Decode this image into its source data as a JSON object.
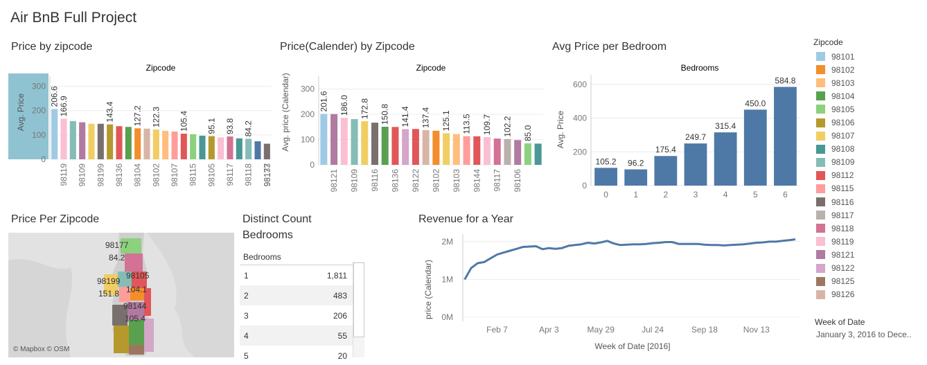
{
  "dashboard": {
    "title": "Air BnB Full Project"
  },
  "price_by_zipcode": {
    "title": "Price by zipcode",
    "header": "Zipcode",
    "y_axis_label": "Avg. Price",
    "y_ticks": [
      "300",
      "200",
      "100",
      "0"
    ],
    "zips": [
      "98119",
      "98109",
      "98199",
      "98136",
      "98104",
      "98102",
      "98107",
      "98115",
      "98105",
      "98117",
      "98118",
      "98177",
      "98133"
    ],
    "label_values": [
      "206.6",
      "166.9",
      "143.4",
      "127.2",
      "122.3",
      "105.4",
      "95.1",
      "93.8",
      "84.2"
    ]
  },
  "price_calendar": {
    "title": "Price(Calender) by Zipcode",
    "header": "Zipcode",
    "y_axis_label": "Avg. price (Calendar)",
    "y_ticks": [
      "300",
      "200",
      "100",
      "0"
    ],
    "zips": [
      "98121",
      "98109",
      "98116",
      "98136",
      "98122",
      "98102",
      "98103",
      "98144",
      "98117",
      "98106"
    ],
    "label_values": [
      "201.6",
      "186.0",
      "172.8",
      "150.8",
      "141.4",
      "137.4",
      "125.1",
      "113.5",
      "109.7",
      "102.2",
      "85.0"
    ]
  },
  "avg_price_bedroom": {
    "title": "Avg Price per Bedroom",
    "header": "Bedrooms",
    "y_axis_label": "Avg. Price",
    "y_ticks": [
      "600",
      "400",
      "200",
      "0"
    ]
  },
  "price_per_zipcode_map": {
    "title": "Price Per Zipcode",
    "labels": [
      "98177",
      "84.2",
      "98199",
      "151.8",
      "98105",
      "104.1",
      "98144",
      "105.4"
    ],
    "attribution": "© Mapbox © OSM"
  },
  "distinct_count": {
    "title_line1": "Distinct Count",
    "title_line2": "Bedrooms",
    "column_header": "Bedrooms",
    "rows": [
      {
        "bedrooms": "1",
        "count": "1,811"
      },
      {
        "bedrooms": "2",
        "count": "483"
      },
      {
        "bedrooms": "3",
        "count": "206"
      },
      {
        "bedrooms": "4",
        "count": "55"
      },
      {
        "bedrooms": "5",
        "count": "20"
      }
    ]
  },
  "revenue": {
    "title": "Revenue for a Year",
    "y_axis_label": "price (Calendar)",
    "x_axis_label": "Week of Date [2016]",
    "y_ticks": [
      "2M",
      "1M",
      "0M"
    ],
    "x_ticks": [
      "Feb 7",
      "Apr 3",
      "May 29",
      "Jul 24",
      "Sep 18",
      "Nov 13"
    ]
  },
  "legend": {
    "title": "Zipcode",
    "items": [
      {
        "label": "98101",
        "color": "#9fcae5"
      },
      {
        "label": "98102",
        "color": "#f28e2b"
      },
      {
        "label": "98103",
        "color": "#ffbe7d"
      },
      {
        "label": "98104",
        "color": "#59a14f"
      },
      {
        "label": "98105",
        "color": "#8cd17d"
      },
      {
        "label": "98106",
        "color": "#b6992d"
      },
      {
        "label": "98107",
        "color": "#f1ce63"
      },
      {
        "label": "98108",
        "color": "#499894"
      },
      {
        "label": "98109",
        "color": "#86bcb6"
      },
      {
        "label": "98112",
        "color": "#e15759"
      },
      {
        "label": "98115",
        "color": "#ff9d9a"
      },
      {
        "label": "98116",
        "color": "#79706e"
      },
      {
        "label": "98117",
        "color": "#bab0ac"
      },
      {
        "label": "98118",
        "color": "#d37295"
      },
      {
        "label": "98119",
        "color": "#fabfd2"
      },
      {
        "label": "98121",
        "color": "#b07aa1"
      },
      {
        "label": "98122",
        "color": "#d4a6c8"
      },
      {
        "label": "98125",
        "color": "#9d7660"
      },
      {
        "label": "98126",
        "color": "#d7b5a6"
      }
    ]
  },
  "filter": {
    "title": "Week of Date",
    "value": "January 3, 2016 to Dece.."
  },
  "chart_data": [
    {
      "type": "bar",
      "title": "Price by zipcode",
      "ylabel": "Avg. Price",
      "ylim": [
        0,
        330
      ],
      "values": [
        206.6,
        166.9,
        157,
        152,
        146,
        146,
        143.4,
        136,
        133,
        127.2,
        126,
        122.3,
        117,
        114,
        105.4,
        103,
        97,
        95.1,
        90,
        93.8,
        86,
        84.2,
        74,
        64
      ],
      "colors": [
        "#9fcae5",
        "#fabfd2",
        "#86bcb6",
        "#b07aa1",
        "#f1ce63",
        "#79706e",
        "#b6992d",
        "#e15759",
        "#59a14f",
        "#f28e2b",
        "#d7b5a6",
        "#f1ce63",
        "#ffbe7d",
        "#ff9d9a",
        "#e15759",
        "#8cd17d",
        "#499894",
        "#b6992d",
        "#fabfd2",
        "#d37295",
        "#499894",
        "#86bcb6",
        "#4e79a7",
        "#79706e"
      ],
      "labels": {
        "0": "206.6",
        "1": "166.9",
        "6": "143.4",
        "9": "127.2",
        "11": "122.3",
        "14": "105.4",
        "17": "95.1",
        "19": "93.8",
        "21": "84.2"
      },
      "tick_categories": {
        "1": "98119",
        "3": "98109",
        "5": "98199",
        "7": "98136",
        "9": "98104",
        "11": "98102",
        "13": "98107",
        "15": "98115",
        "17": "98105",
        "19": "98117",
        "21": "98118",
        "23": "98177"
      },
      "extra_ticks": [
        "98133"
      ]
    },
    {
      "type": "bar",
      "title": "Price(Calender) by Zipcode",
      "ylabel": "Avg. price (Calendar)",
      "ylim": [
        0,
        340
      ],
      "values": [
        201.6,
        201,
        186.0,
        181,
        172.8,
        167,
        150.8,
        150,
        141.4,
        142,
        137.4,
        135,
        125.1,
        122,
        113.5,
        113,
        109.7,
        104,
        102.2,
        98,
        85.0,
        84
      ],
      "colors": [
        "#9fcae5",
        "#b07aa1",
        "#fabfd2",
        "#86bcb6",
        "#f1ce63",
        "#79706e",
        "#59a14f",
        "#e15759",
        "#d4a6c8",
        "#e15759",
        "#d7b5a6",
        "#f28e2b",
        "#f1ce63",
        "#ffbe7d",
        "#ff9d9a",
        "#e15759",
        "#fabfd2",
        "#d37295",
        "#bab0ac",
        "#b07aa1",
        "#8cd17d",
        "#499894"
      ],
      "labels": {
        "0": "201.6",
        "2": "186.0",
        "4": "172.8",
        "6": "150.8",
        "8": "141.4",
        "10": "137.4",
        "12": "125.1",
        "14": "113.5",
        "16": "109.7",
        "18": "102.2",
        "20": "85.0"
      },
      "tick_categories": {
        "1": "98121",
        "3": "98109",
        "5": "98116",
        "7": "98136",
        "9": "98122",
        "11": "98102",
        "13": "98103",
        "15": "98144",
        "17": "98117",
        "19": "98106"
      }
    },
    {
      "type": "bar",
      "title": "Avg Price per Bedroom",
      "ylabel": "Avg. Price",
      "xlabel": "Bedrooms",
      "ylim": [
        0,
        640
      ],
      "categories": [
        "0",
        "1",
        "2",
        "3",
        "4",
        "5",
        "6"
      ],
      "values": [
        105.2,
        96.2,
        175.4,
        249.7,
        315.4,
        450.0,
        584.8
      ],
      "value_labels": [
        "105.2",
        "96.2",
        "175.4",
        "249.7",
        "315.4",
        "450.0",
        "584.8"
      ],
      "color": "#4e79a7"
    },
    {
      "type": "line",
      "title": "Revenue for a Year",
      "ylabel": "price (Calendar)",
      "xlabel": "Week of Date [2016]",
      "ylim": [
        0,
        2200000
      ],
      "x": [
        "2016-01-03",
        "2016-01-10",
        "2016-01-17",
        "2016-01-24",
        "2016-01-31",
        "2016-02-07",
        "2016-02-14",
        "2016-02-21",
        "2016-02-28",
        "2016-03-06",
        "2016-03-13",
        "2016-03-20",
        "2016-03-27",
        "2016-04-03",
        "2016-04-10",
        "2016-04-17",
        "2016-04-24",
        "2016-05-01",
        "2016-05-08",
        "2016-05-15",
        "2016-05-22",
        "2016-05-29",
        "2016-06-05",
        "2016-06-12",
        "2016-06-19",
        "2016-06-26",
        "2016-07-03",
        "2016-07-10",
        "2016-07-17",
        "2016-07-24",
        "2016-07-31",
        "2016-08-07",
        "2016-08-14",
        "2016-08-21",
        "2016-08-28",
        "2016-09-04",
        "2016-09-11",
        "2016-09-18",
        "2016-09-25",
        "2016-10-02",
        "2016-10-09",
        "2016-10-16",
        "2016-10-23",
        "2016-10-30",
        "2016-11-06",
        "2016-11-13",
        "2016-11-20",
        "2016-11-27",
        "2016-12-04",
        "2016-12-11",
        "2016-12-18",
        "2016-12-25"
      ],
      "values": [
        1000000,
        1300000,
        1430000,
        1460000,
        1560000,
        1660000,
        1710000,
        1760000,
        1810000,
        1860000,
        1870000,
        1880000,
        1800000,
        1830000,
        1810000,
        1830000,
        1890000,
        1910000,
        1930000,
        1970000,
        1950000,
        1980000,
        2020000,
        1950000,
        1910000,
        1920000,
        1930000,
        1930000,
        1940000,
        1960000,
        1970000,
        1990000,
        1990000,
        1940000,
        1940000,
        1940000,
        1940000,
        1920000,
        1910000,
        1910000,
        1900000,
        1910000,
        1920000,
        1930000,
        1950000,
        1970000,
        1980000,
        2000000,
        2000000,
        2020000,
        2040000,
        2060000
      ],
      "x_ticks": [
        "Feb 7",
        "Apr 3",
        "May 29",
        "Jul 24",
        "Sep 18",
        "Nov 13"
      ],
      "y_ticks": [
        "0M",
        "1M",
        "2M"
      ],
      "color": "#4e79a7"
    }
  ]
}
